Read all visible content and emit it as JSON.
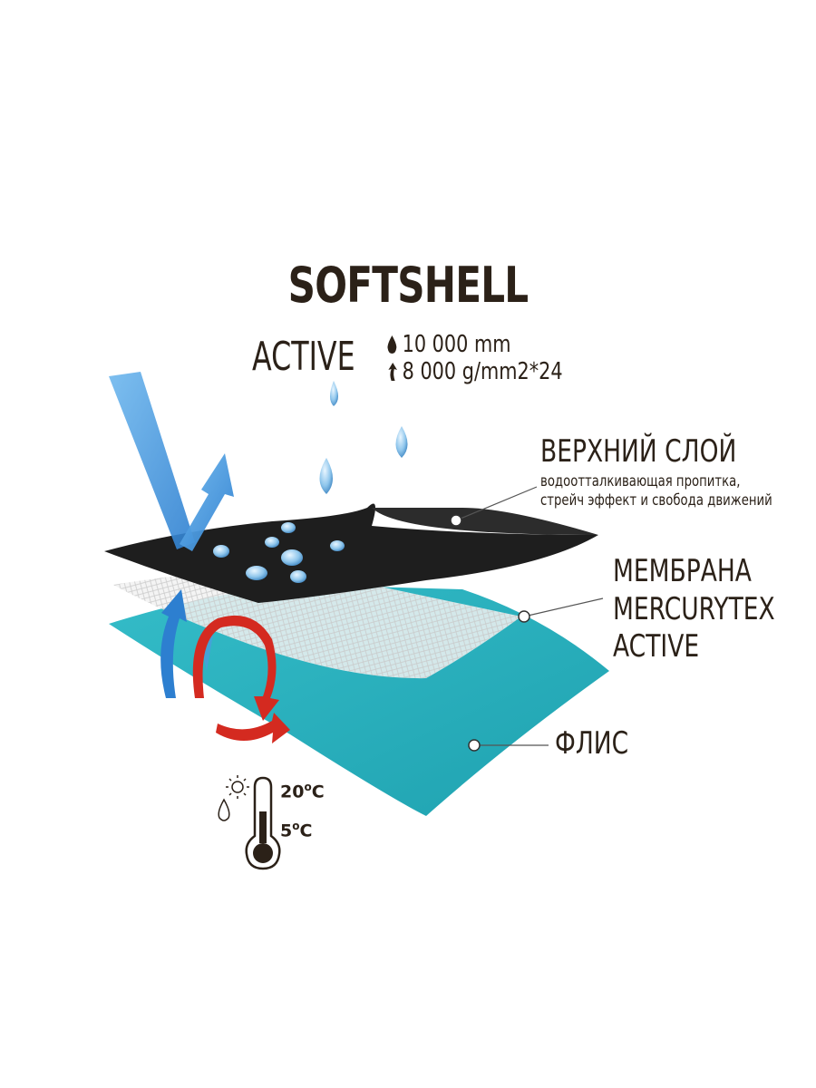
{
  "title": "SOFTSHELL",
  "subtitle": "ACTIVE",
  "specs": {
    "water_resistance": "10 000 mm",
    "breathability": "8 000 g/mm2*24"
  },
  "layers": {
    "top": {
      "title": "ВЕРХНИЙ СЛОЙ",
      "description_line1": "водоотталкивающая пропитка,",
      "description_line2": "стрейч эффект и свобода движений"
    },
    "membrane": {
      "line1": "МЕМБРАНА",
      "line2": "MERCURYTEX",
      "line3": "ACTIVE"
    },
    "fleece": {
      "title": "ФЛИС"
    }
  },
  "temperature": {
    "high": "20",
    "low": "5",
    "degree_mark": "o",
    "unit": "C"
  },
  "colors": {
    "text": "#2b2118",
    "shell": "#1e1e1e",
    "fleece": "#2bb0bd",
    "membrane": "#e6e6e6",
    "air_arrow": "#3a8ad8",
    "heat_arrow": "#d42a20"
  }
}
